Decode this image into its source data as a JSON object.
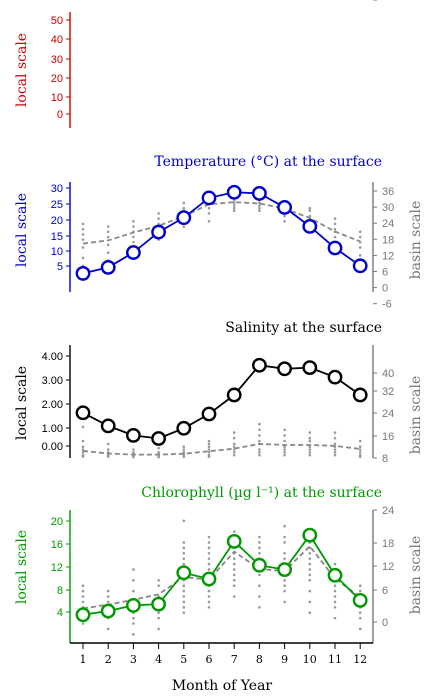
{
  "chart_data": {
    "type": "line",
    "x_shared": {
      "label": "Month of Year",
      "ticks": [
        1,
        2,
        3,
        4,
        5,
        6,
        7,
        8,
        9,
        10,
        11,
        12
      ]
    },
    "panels": [
      {
        "id": "empty",
        "title": "",
        "color": "#cc0000",
        "left_label": "local scale",
        "right_label": "",
        "left_ticks": [
          50,
          40,
          30,
          20,
          10,
          0
        ],
        "left_range": [
          -10,
          55
        ],
        "right_ticks": [],
        "local_series": [],
        "basin_mean": [],
        "basin_points": []
      },
      {
        "id": "temperature",
        "title": "Temperature (°C) at the surface",
        "color": "#0000cc",
        "left_label": "local scale",
        "right_label": "basin scale",
        "left_ticks": [
          30,
          25,
          20,
          15,
          10,
          5
        ],
        "left_range": [
          3,
          32
        ],
        "right_ticks": [
          36,
          30,
          24,
          18,
          12,
          6,
          0,
          -6
        ],
        "right_range": [
          -6,
          36
        ],
        "local_series": [
          7.9,
          9.5,
          13.4,
          18.8,
          22.6,
          27.8,
          29.3,
          29.0,
          25.3,
          20.3,
          14.6,
          9.9
        ],
        "basin_mean": [
          12.5,
          13.7,
          16.7,
          19.3,
          22.9,
          27.5,
          28.3,
          27.8,
          25.8,
          22.3,
          17.1,
          13.3
        ],
        "basin_points": [
          [
            4,
            7,
            11,
            14,
            16,
            18,
            20
          ],
          [
            6,
            9,
            12,
            15,
            17,
            19
          ],
          [
            10,
            13,
            15,
            17,
            19,
            21
          ],
          [
            14,
            16,
            18,
            20,
            22,
            24
          ],
          [
            19,
            21,
            23,
            25,
            26,
            28
          ],
          [
            21,
            24,
            26,
            28,
            30,
            31
          ],
          [
            25,
            26,
            27,
            28,
            29,
            30
          ],
          [
            25,
            26,
            27,
            28,
            29,
            30
          ],
          [
            21,
            23,
            24,
            26,
            27,
            28
          ],
          [
            18,
            20,
            22,
            23,
            25,
            26
          ],
          [
            13,
            15,
            17,
            18,
            20,
            22
          ],
          [
            2,
            5,
            8,
            11,
            13,
            15,
            17
          ]
        ]
      },
      {
        "id": "salinity",
        "title": "Salinity at the surface",
        "color": "#000000",
        "left_label": "local scale",
        "right_label": "basin scale",
        "left_ticks": [
          "4.00",
          "3.00",
          "2.00",
          "1.00",
          "0.00"
        ],
        "left_range": [
          -0.55,
          4.2
        ],
        "right_ticks": [
          40,
          32,
          24,
          16,
          8,
          0
        ],
        "right_range": [
          0,
          40
        ],
        "local_series": [
          1.35,
          0.8,
          0.4,
          0.27,
          0.7,
          1.3,
          2.1,
          3.35,
          3.2,
          3.25,
          2.85,
          2.1
        ],
        "basin_mean": [
          2.5,
          1.6,
          1.2,
          1.2,
          1.5,
          2.4,
          3.3,
          5.0,
          4.6,
          4.6,
          4.3,
          3.2
        ],
        "basin_points": [
          [
            0.5,
            1,
            2,
            3,
            4,
            6,
            11
          ],
          [
            0.5,
            1,
            1.5,
            2,
            3,
            5
          ],
          [
            0.3,
            0.6,
            1,
            1.5,
            2,
            3
          ],
          [
            0.3,
            0.6,
            1,
            1.5,
            2,
            3.5
          ],
          [
            0.5,
            1,
            1.5,
            2,
            3,
            4
          ],
          [
            0.5,
            1,
            2,
            3,
            4,
            5,
            6
          ],
          [
            1,
            2,
            3,
            4,
            5,
            7,
            9
          ],
          [
            1,
            2,
            3,
            5,
            6,
            8,
            10,
            12
          ],
          [
            1,
            2,
            3,
            4,
            6,
            8,
            10
          ],
          [
            1,
            2,
            3,
            4,
            6,
            7,
            9
          ],
          [
            1,
            2,
            3,
            4,
            5,
            7,
            9
          ],
          [
            0.5,
            1,
            2,
            3,
            4,
            6
          ]
        ]
      },
      {
        "id": "chlorophyll",
        "title": "Chlorophyll (µg l⁻¹) at the surface",
        "color": "#009900",
        "left_label": "local scale",
        "right_label": "basin scale",
        "left_ticks": [
          20,
          16,
          12,
          8,
          4
        ],
        "left_range": [
          0.8,
          22
        ],
        "right_ticks": [
          24,
          18,
          12,
          6,
          0
        ],
        "right_range": [
          -0.6,
          24
        ],
        "local_series": [
          5.3,
          5.9,
          6.8,
          7.0,
          12.0,
          11.0,
          17.0,
          13.2,
          12.5,
          18.0,
          11.6,
          7.6
        ],
        "basin_mean": [
          5.8,
          6.5,
          7.4,
          8.4,
          11.6,
          11.1,
          16.3,
          13.1,
          12.7,
          17.3,
          11.3,
          7.9
        ],
        "basin_points": [
          [
            3,
            4,
            5,
            6,
            7,
            8,
            9,
            10
          ],
          [
            2,
            4,
            5,
            6,
            7,
            8,
            9
          ],
          [
            1,
            3,
            4,
            5,
            7,
            9,
            11,
            13
          ],
          [
            2,
            4,
            5,
            6,
            7,
            8,
            10,
            11
          ],
          [
            5,
            6,
            7,
            8,
            9,
            10,
            11,
            12,
            13,
            14,
            15,
            16,
            17,
            18,
            22
          ],
          [
            6,
            7,
            8,
            9,
            10,
            11,
            12,
            13,
            14,
            15,
            16,
            17,
            18,
            19
          ],
          [
            8,
            10,
            11,
            12,
            13,
            14,
            15,
            16,
            17,
            18,
            19,
            20
          ],
          [
            6,
            8,
            10,
            12,
            13,
            14,
            15,
            16,
            17,
            18,
            19
          ],
          [
            7,
            9,
            10,
            11,
            12,
            13,
            14,
            15,
            16,
            18,
            19,
            21
          ],
          [
            5,
            7,
            9,
            11,
            12,
            13,
            14,
            15,
            16,
            17,
            18,
            19,
            20
          ],
          [
            4,
            6,
            7,
            8,
            9,
            10,
            11,
            12,
            14
          ],
          [
            2,
            4,
            5,
            6,
            7,
            8,
            9,
            10
          ]
        ]
      }
    ]
  }
}
